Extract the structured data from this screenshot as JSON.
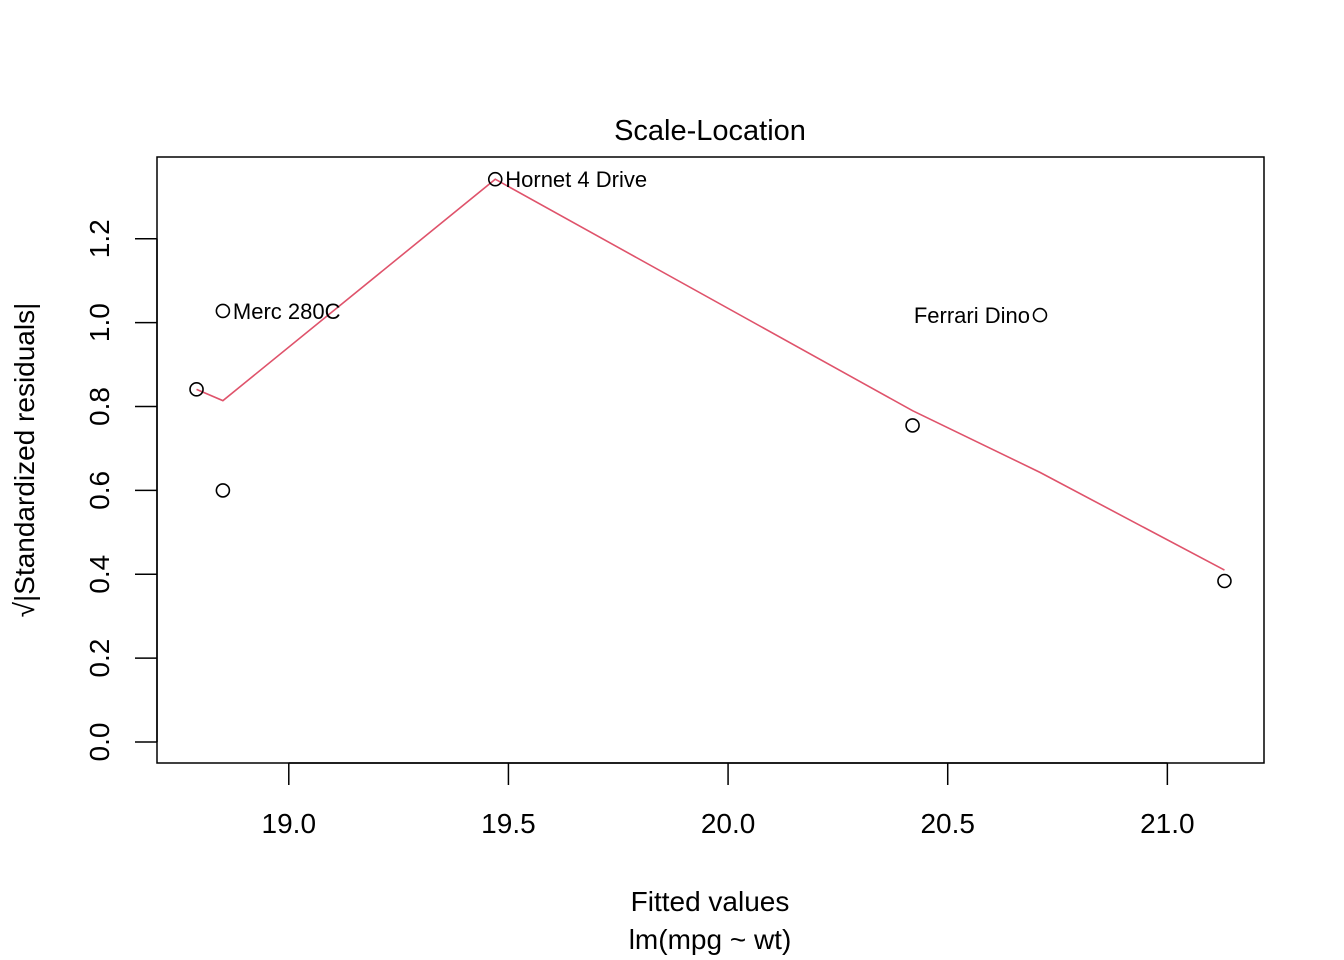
{
  "chart_data": {
    "type": "scatter",
    "title": "Scale-Location",
    "xlabel": "Fitted values",
    "xsublabel": "lm(mpg ~ wt)",
    "ylabel": "√|Standardized residuals|",
    "xlim": [
      18.7,
      21.22
    ],
    "ylim": [
      -0.05,
      1.395
    ],
    "xticks": [
      19.0,
      19.5,
      20.0,
      20.5,
      21.0
    ],
    "xtick_labels": [
      "19.0",
      "19.5",
      "20.0",
      "20.5",
      "21.0"
    ],
    "yticks": [
      0.0,
      0.2,
      0.4,
      0.6,
      0.8,
      1.0,
      1.2
    ],
    "ytick_labels": [
      "0.0",
      "0.2",
      "0.4",
      "0.6",
      "0.8",
      "1.0",
      "1.2"
    ],
    "grid": false,
    "points": [
      {
        "x": 18.79,
        "y": 0.841,
        "label": ""
      },
      {
        "x": 18.85,
        "y": 1.028,
        "label": "Merc 280C",
        "label_side": "right"
      },
      {
        "x": 18.85,
        "y": 0.6,
        "label": ""
      },
      {
        "x": 19.47,
        "y": 1.342,
        "label": "Hornet 4 Drive",
        "label_side": "right"
      },
      {
        "x": 20.42,
        "y": 0.755,
        "label": ""
      },
      {
        "x": 20.71,
        "y": 1.018,
        "label": "Ferrari Dino",
        "label_side": "left"
      },
      {
        "x": 21.13,
        "y": 0.384,
        "label": ""
      }
    ],
    "smooth_line": {
      "color": "#DF536B",
      "x": [
        18.79,
        18.85,
        19.47,
        20.42,
        20.71,
        21.13
      ],
      "y": [
        0.841,
        0.814,
        1.342,
        0.79,
        0.643,
        0.41
      ]
    },
    "point_color": "#000000"
  }
}
